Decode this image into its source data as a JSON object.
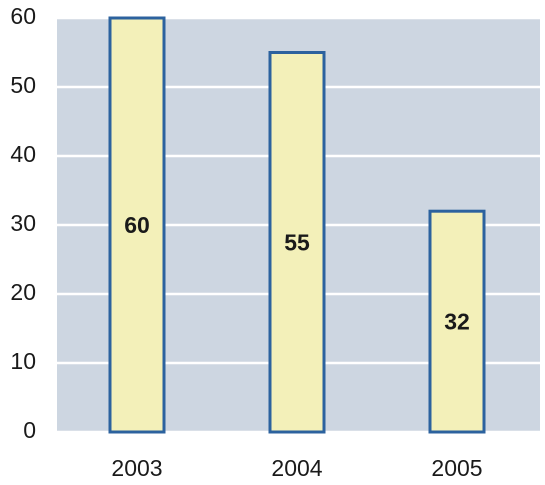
{
  "chart_data": {
    "type": "bar",
    "categories": [
      "2003",
      "2004",
      "2005"
    ],
    "values": [
      60,
      55,
      32
    ],
    "color": "#f3f0b9",
    "edge_color": "#2c629e",
    "plot_background": "#cdd6e1",
    "ylim": [
      0,
      60
    ],
    "yticks": [
      0,
      10,
      20,
      30,
      40,
      50,
      60
    ],
    "grid": true,
    "data_labels": true
  }
}
